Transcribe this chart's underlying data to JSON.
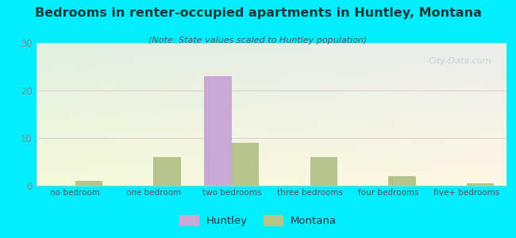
{
  "title": "Bedrooms in renter-occupied apartments in Huntley, Montana",
  "subtitle": "(Note: State values scaled to Huntley population)",
  "categories": [
    "no bedroom",
    "one bedroom",
    "two bedrooms",
    "three bedrooms",
    "four bedrooms",
    "five+ bedrooms"
  ],
  "huntley_values": [
    0,
    0,
    23,
    0,
    0,
    0
  ],
  "montana_values": [
    1,
    6,
    9,
    6,
    2,
    0.5
  ],
  "huntley_color": "#c9a8d4",
  "montana_color": "#b5c48a",
  "background_outer": "#00eeff",
  "ylim": [
    0,
    30
  ],
  "yticks": [
    0,
    10,
    20,
    30
  ],
  "bar_width": 0.35,
  "figsize": [
    6.5,
    3.0
  ],
  "dpi": 100,
  "title_color": "#1a3a3a",
  "subtitle_color": "#555555",
  "tick_color": "#888888",
  "watermark_color": "#c0d0d8"
}
